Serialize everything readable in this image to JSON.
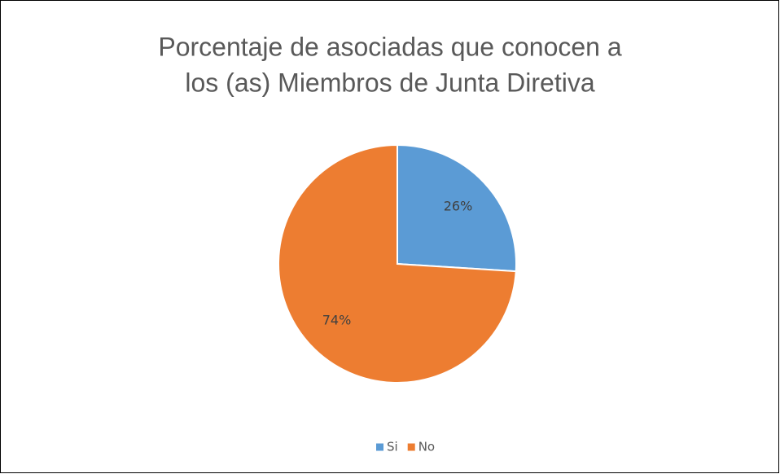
{
  "chart_data": {
    "type": "pie",
    "title": [
      "Porcentaje de asociadas que conocen a",
      "los (as) Miembros de Junta Diretiva"
    ],
    "categories": [
      "Si",
      "No"
    ],
    "values": [
      26,
      74
    ],
    "value_labels": [
      "26%",
      "74%"
    ],
    "colors": [
      "#5b9bd5",
      "#ed7d31"
    ],
    "legend": "bottom"
  }
}
